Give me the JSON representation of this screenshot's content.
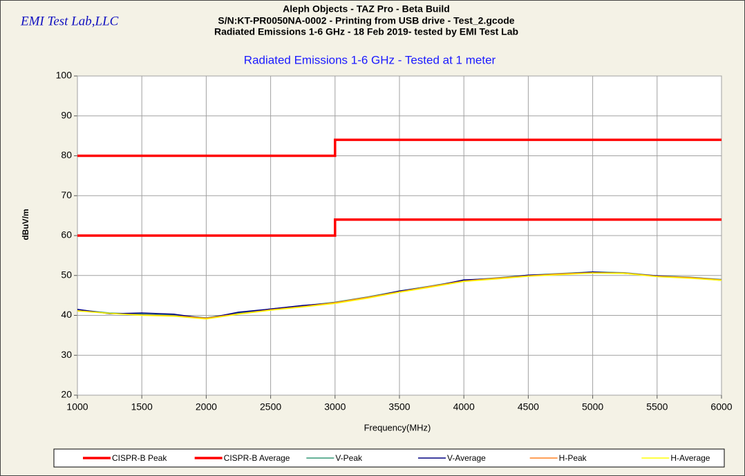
{
  "chart_data": {
    "type": "line",
    "logo": "EMI Test Lab,LLC",
    "title": [
      "Aleph Objects - TAZ Pro - Beta Build",
      "S/N:KT-PR0050NA-0002 - Printing from USB drive - Test_2.gcode",
      "Radiated Emissions 1-6 GHz - 18 Feb 2019- tested by EMI Test Lab"
    ],
    "subtitle": "Radiated Emissions 1-6 GHz - Tested at 1 meter",
    "x_label": "Frequency(MHz)",
    "y_label": "dBuV/m",
    "xlim": [
      1000,
      6000
    ],
    "xticks": [
      1000,
      1500,
      2000,
      2500,
      3000,
      3500,
      4000,
      4500,
      5000,
      5500,
      6000
    ],
    "ylim": [
      20,
      100
    ],
    "yticks": [
      20,
      30,
      40,
      50,
      60,
      70,
      80,
      90,
      100
    ],
    "grid": true,
    "legend": "bottom",
    "series": [
      {
        "name": "CISPR-B Peak",
        "color": "#ff0000",
        "x": [
          1000,
          3000,
          3000,
          6000
        ],
        "values": [
          80,
          80,
          84,
          84
        ]
      },
      {
        "name": "CISPR-B Average",
        "color": "#ff0000",
        "x": [
          1000,
          3000,
          3000,
          6000
        ],
        "values": [
          60,
          60,
          64,
          64
        ]
      },
      {
        "name": "V-Peak",
        "color": "#339977",
        "x": [
          1000,
          1250,
          1500,
          1750,
          2000,
          2250,
          2500,
          2750,
          3000,
          3250,
          3500,
          3750,
          4000,
          4250,
          4500,
          4750,
          5000,
          5250,
          5500,
          5750,
          6000
        ],
        "values": [
          41.4,
          40.6,
          40.3,
          40.1,
          39.4,
          40.6,
          41.6,
          42.4,
          43.3,
          44.6,
          46.1,
          47.4,
          48.8,
          49.4,
          50.1,
          50.5,
          50.9,
          50.7,
          49.9,
          49.6,
          49.0
        ]
      },
      {
        "name": "V-Average",
        "color": "#000080",
        "x": [
          1000,
          1250,
          1500,
          1750,
          2000,
          2250,
          2500,
          2750,
          3000,
          3250,
          3500,
          3750,
          4000,
          4250,
          4500,
          4750,
          5000,
          5250,
          5500,
          5750,
          6000
        ],
        "values": [
          41.5,
          40.4,
          40.6,
          40.3,
          39.2,
          40.8,
          41.6,
          42.5,
          43.1,
          44.4,
          46.1,
          47.2,
          48.9,
          49.2,
          50.1,
          50.3,
          50.9,
          50.5,
          49.9,
          49.4,
          48.8
        ]
      },
      {
        "name": "H-Peak",
        "color": "#ff8020",
        "x": [
          1000,
          1250,
          1500,
          1750,
          2000,
          2250,
          2500,
          2750,
          3000,
          3250,
          3500,
          3750,
          4000,
          4250,
          4500,
          4750,
          5000,
          5250,
          5500,
          5750,
          6000
        ],
        "values": [
          41.2,
          40.5,
          40.1,
          39.9,
          39.3,
          40.4,
          41.4,
          42.2,
          43.2,
          44.5,
          45.9,
          47.3,
          48.6,
          49.3,
          49.9,
          50.4,
          50.7,
          50.6,
          49.8,
          49.5,
          48.9
        ]
      },
      {
        "name": "H-Average",
        "color": "#ffff00",
        "x": [
          1000,
          1250,
          1500,
          1750,
          2000,
          2250,
          2500,
          2750,
          3000,
          3250,
          3500,
          3750,
          4000,
          4250,
          4500,
          4750,
          5000,
          5250,
          5500,
          5750,
          6000
        ],
        "values": [
          41.1,
          40.5,
          40.0,
          39.8,
          39.1,
          40.3,
          41.3,
          42.1,
          43.0,
          44.3,
          45.8,
          47.1,
          48.5,
          49.1,
          49.8,
          50.2,
          50.6,
          50.5,
          49.7,
          49.3,
          48.8
        ]
      }
    ]
  }
}
